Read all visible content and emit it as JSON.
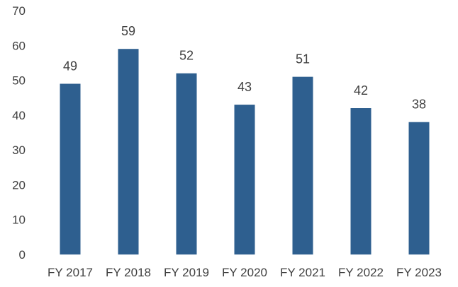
{
  "chart_data": {
    "type": "bar",
    "title": "",
    "xlabel": "",
    "ylabel": "",
    "categories": [
      "FY 2017",
      "FY 2018",
      "FY 2019",
      "FY 2020",
      "FY 2021",
      "FY 2022",
      "FY 2023"
    ],
    "values": [
      49,
      59,
      52,
      43,
      51,
      42,
      38
    ],
    "data_labels": [
      "49",
      "59",
      "52",
      "43",
      "51",
      "42",
      "38"
    ],
    "ylim": [
      0,
      70
    ],
    "y_ticks": [
      "0",
      "10",
      "20",
      "30",
      "40",
      "50",
      "60",
      "70"
    ],
    "grid": false,
    "legend": "none",
    "bar_color": "#2e5f8f"
  }
}
